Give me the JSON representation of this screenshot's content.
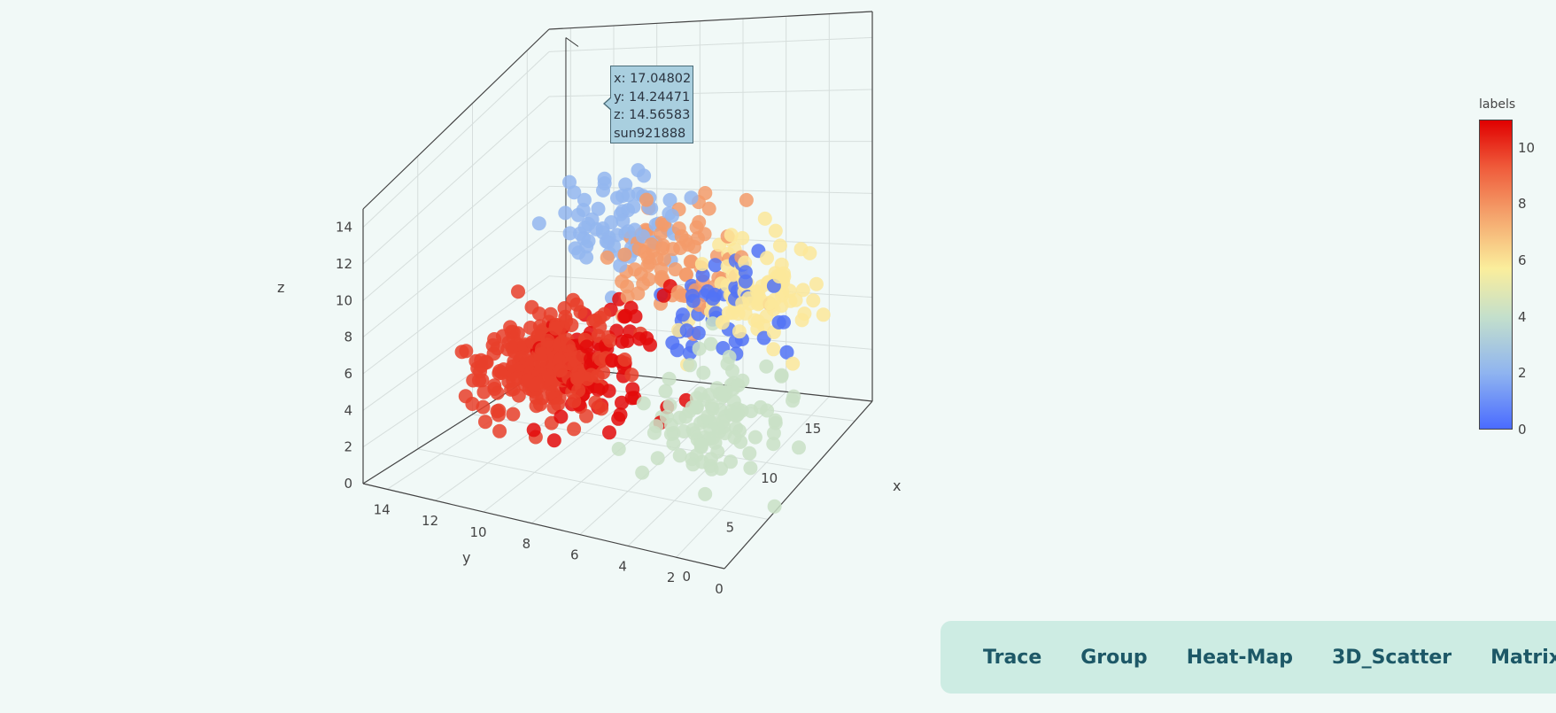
{
  "chart_data": {
    "type": "scatter",
    "dimensions": 3,
    "axes": {
      "x": {
        "title": "x",
        "ticks": [
          "0",
          "5",
          "10",
          "15"
        ],
        "range": [
          0,
          17
        ]
      },
      "y": {
        "title": "y",
        "ticks": [
          "0",
          "2",
          "4",
          "6",
          "8",
          "10",
          "12",
          "14"
        ],
        "range": [
          0,
          15
        ]
      },
      "z": {
        "title": "z",
        "ticks": [
          "0",
          "2",
          "4",
          "6",
          "8",
          "10",
          "12",
          "14"
        ],
        "range": [
          0,
          15
        ]
      }
    },
    "grid": true,
    "colorbar": {
      "title": "labels",
      "ticks": [
        "0",
        "2",
        "4",
        "6",
        "8",
        "10"
      ],
      "range": [
        0,
        11
      ],
      "colors": [
        "#4a6bff",
        "#8fb4f0",
        "#c3dfcc",
        "#fbee9c",
        "#f4a06a",
        "#ef5a3a",
        "#e00000"
      ]
    },
    "clusters": [
      {
        "label": 0,
        "color": "#5273f5",
        "center": [
          10.5,
          4.5,
          6.0
        ],
        "count": 45
      },
      {
        "label": 2,
        "color": "#93b6ee",
        "center": [
          12.5,
          9.5,
          8.5
        ],
        "count": 70
      },
      {
        "label": 4,
        "color": "#c9e1c6",
        "center": [
          6.0,
          2.5,
          3.5
        ],
        "count": 110
      },
      {
        "label": 6,
        "color": "#fbe89a",
        "center": [
          12.0,
          3.5,
          6.0
        ],
        "count": 90
      },
      {
        "label": 8,
        "color": "#f39b6a",
        "center": [
          12.0,
          7.5,
          7.0
        ],
        "count": 80
      },
      {
        "label": 10,
        "color": "#e8402a",
        "center": [
          3.5,
          9.0,
          6.0
        ],
        "count": 260
      },
      {
        "label": 11,
        "color": "#e30a0a",
        "center": [
          5.5,
          7.5,
          5.5
        ],
        "count": 90
      }
    ],
    "highlight_point": {
      "x": 17.04802,
      "y": 14.24471,
      "z": 14.56583,
      "name": "sun921888"
    }
  },
  "tooltip": {
    "x_line": "x: 17.04802",
    "y_line": "y: 14.24471",
    "z_line": "z: 14.56583",
    "name_line": "sun921888"
  },
  "nav": {
    "items": [
      {
        "label": "Trace"
      },
      {
        "label": "Group"
      },
      {
        "label": "Heat-Map"
      },
      {
        "label": "3D_Scatter"
      },
      {
        "label": "Matrix"
      }
    ]
  }
}
